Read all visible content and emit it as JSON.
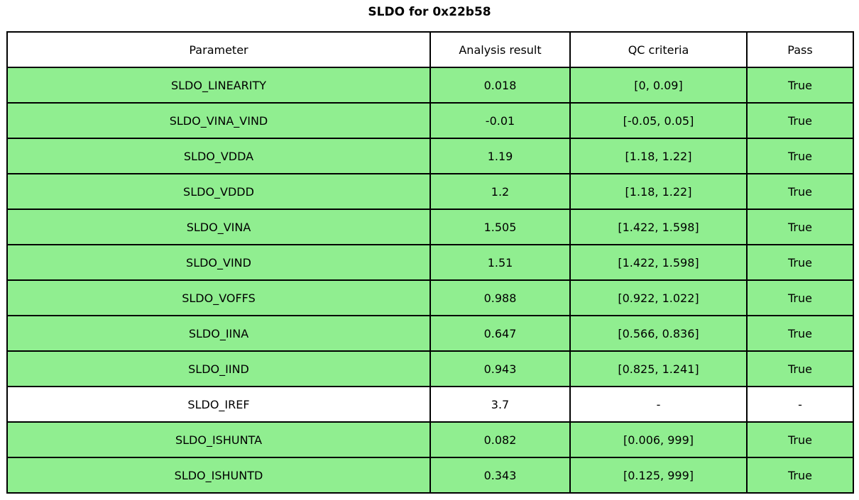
{
  "title": "SLDO for 0x22b58",
  "chart_data": {
    "type": "table",
    "title": "SLDO for 0x22b58",
    "columns": [
      "Parameter",
      "Analysis result",
      "QC criteria",
      "Pass"
    ],
    "rows": [
      {
        "parameter": "SLDO_LINEARITY",
        "result": "0.018",
        "criteria": "[0, 0.09]",
        "pass": "True",
        "status": "pass"
      },
      {
        "parameter": "SLDO_VINA_VIND",
        "result": "-0.01",
        "criteria": "[-0.05, 0.05]",
        "pass": "True",
        "status": "pass"
      },
      {
        "parameter": "SLDO_VDDA",
        "result": "1.19",
        "criteria": "[1.18, 1.22]",
        "pass": "True",
        "status": "pass"
      },
      {
        "parameter": "SLDO_VDDD",
        "result": "1.2",
        "criteria": "[1.18, 1.22]",
        "pass": "True",
        "status": "pass"
      },
      {
        "parameter": "SLDO_VINA",
        "result": "1.505",
        "criteria": "[1.422, 1.598]",
        "pass": "True",
        "status": "pass"
      },
      {
        "parameter": "SLDO_VIND",
        "result": "1.51",
        "criteria": "[1.422, 1.598]",
        "pass": "True",
        "status": "pass"
      },
      {
        "parameter": "SLDO_VOFFS",
        "result": "0.988",
        "criteria": "[0.922, 1.022]",
        "pass": "True",
        "status": "pass"
      },
      {
        "parameter": "SLDO_IINA",
        "result": "0.647",
        "criteria": "[0.566, 0.836]",
        "pass": "True",
        "status": "pass"
      },
      {
        "parameter": "SLDO_IIND",
        "result": "0.943",
        "criteria": "[0.825, 1.241]",
        "pass": "True",
        "status": "pass"
      },
      {
        "parameter": "SLDO_IREF",
        "result": "3.7",
        "criteria": "-",
        "pass": "-",
        "status": "neutral"
      },
      {
        "parameter": "SLDO_ISHUNTA",
        "result": "0.082",
        "criteria": "[0.006, 999]",
        "pass": "True",
        "status": "pass"
      },
      {
        "parameter": "SLDO_ISHUNTD",
        "result": "0.343",
        "criteria": "[0.125, 999]",
        "pass": "True",
        "status": "pass"
      }
    ]
  },
  "colors": {
    "pass_row_bg": "#90ee90",
    "neutral_row_bg": "#ffffff",
    "header_bg": "#ffffff",
    "border": "#000000",
    "text": "#000000"
  }
}
